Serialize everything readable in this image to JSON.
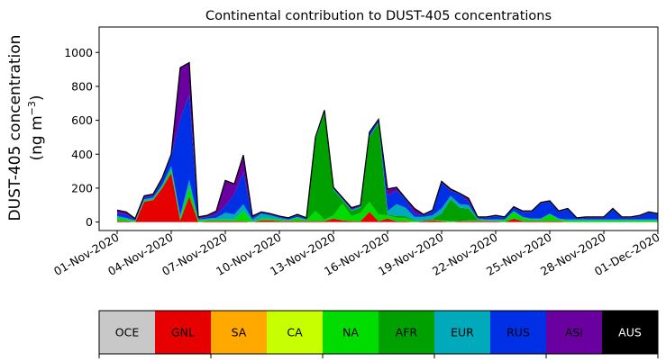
{
  "chart_data": {
    "type": "area",
    "stacked": true,
    "title": "Continental contribution to DUST-405 concentrations",
    "ylabel_line1": "DUST-405 concentration",
    "ylabel_line2": "(ng m",
    "ylabel_sup": "−3",
    "ylabel_close": ")",
    "x_start": "2020-11-01",
    "x_step_days": 0.5,
    "xlim": [
      "2020-10-31",
      "2020-12-01"
    ],
    "ylim": [
      -50,
      1150
    ],
    "yticks": [
      0,
      200,
      400,
      600,
      800,
      1000
    ],
    "xtick_labels": [
      "01-Nov-2020",
      "04-Nov-2020",
      "07-Nov-2020",
      "10-Nov-2020",
      "13-Nov-2020",
      "16-Nov-2020",
      "19-Nov-2020",
      "22-Nov-2020",
      "25-Nov-2020",
      "28-Nov-2020",
      "01-Dec-2020"
    ],
    "grid": false,
    "legend": "colorbar-below",
    "series": [
      {
        "name": "OCE",
        "color": "#c8c8c8",
        "values": [
          0,
          0,
          0,
          0,
          0,
          0,
          0,
          0,
          0,
          0,
          0,
          0,
          0,
          0,
          0,
          0,
          0,
          0,
          0,
          0,
          0,
          0,
          0,
          0,
          0,
          0,
          0,
          0,
          0,
          0,
          0,
          0,
          0,
          0,
          0,
          0,
          0,
          0,
          0,
          0,
          0,
          0,
          0,
          0,
          0,
          0,
          0,
          0,
          0,
          0,
          0,
          0,
          0,
          0,
          0,
          0,
          0,
          0,
          0,
          0,
          0
        ]
      },
      {
        "name": "GNL",
        "color": "#e60000",
        "values": [
          5,
          5,
          0,
          120,
          130,
          200,
          290,
          10,
          150,
          0,
          5,
          5,
          5,
          5,
          5,
          0,
          10,
          10,
          5,
          5,
          5,
          5,
          5,
          5,
          20,
          10,
          5,
          5,
          60,
          5,
          20,
          5,
          5,
          0,
          5,
          10,
          5,
          0,
          5,
          5,
          5,
          5,
          5,
          0,
          20,
          5,
          5,
          5,
          5,
          5,
          0,
          0,
          0,
          0,
          0,
          0,
          0,
          0,
          0,
          0,
          0
        ]
      },
      {
        "name": "SA",
        "color": "#ffa800",
        "values": [
          0,
          0,
          0,
          0,
          0,
          0,
          0,
          0,
          0,
          0,
          0,
          0,
          0,
          0,
          0,
          0,
          0,
          0,
          0,
          0,
          0,
          0,
          0,
          0,
          0,
          0,
          0,
          0,
          0,
          0,
          0,
          0,
          0,
          0,
          0,
          0,
          0,
          0,
          0,
          0,
          0,
          0,
          0,
          0,
          0,
          0,
          0,
          0,
          0,
          0,
          0,
          0,
          0,
          0,
          0,
          0,
          0,
          0,
          0,
          0,
          0
        ]
      },
      {
        "name": "CA",
        "color": "#c8ff00",
        "values": [
          0,
          0,
          0,
          0,
          0,
          0,
          0,
          0,
          0,
          0,
          0,
          0,
          0,
          0,
          0,
          0,
          0,
          0,
          0,
          0,
          0,
          0,
          0,
          0,
          0,
          0,
          0,
          0,
          0,
          0,
          0,
          0,
          0,
          0,
          0,
          0,
          0,
          0,
          0,
          0,
          0,
          0,
          0,
          0,
          0,
          0,
          0,
          0,
          0,
          0,
          0,
          0,
          0,
          0,
          0,
          0,
          0,
          0,
          0,
          0,
          0
        ]
      },
      {
        "name": "NA",
        "color": "#00dc00",
        "values": [
          20,
          10,
          5,
          5,
          5,
          10,
          20,
          10,
          60,
          10,
          10,
          10,
          10,
          10,
          60,
          5,
          10,
          10,
          10,
          5,
          20,
          5,
          60,
          10,
          20,
          100,
          30,
          50,
          60,
          40,
          20,
          20,
          20,
          5,
          0,
          5,
          5,
          5,
          0,
          5,
          5,
          5,
          5,
          10,
          40,
          20,
          10,
          10,
          40,
          10,
          10,
          10,
          10,
          10,
          10,
          10,
          10,
          10,
          10,
          10,
          10
        ]
      },
      {
        "name": "AFR",
        "color": "#00a000",
        "values": [
          0,
          0,
          0,
          0,
          0,
          0,
          0,
          0,
          0,
          0,
          0,
          0,
          0,
          0,
          0,
          0,
          0,
          0,
          0,
          0,
          0,
          0,
          420,
          630,
          150,
          20,
          30,
          30,
          380,
          540,
          5,
          10,
          10,
          5,
          5,
          5,
          40,
          130,
          80,
          70,
          5,
          0,
          0,
          0,
          0,
          0,
          0,
          0,
          0,
          0,
          0,
          0,
          0,
          0,
          0,
          0,
          0,
          0,
          0,
          0,
          0
        ]
      },
      {
        "name": "EUR",
        "color": "#00aabb",
        "values": [
          10,
          10,
          5,
          10,
          10,
          10,
          20,
          20,
          40,
          5,
          5,
          10,
          40,
          30,
          40,
          10,
          30,
          20,
          10,
          5,
          5,
          5,
          5,
          5,
          5,
          5,
          5,
          5,
          5,
          5,
          20,
          70,
          50,
          20,
          20,
          20,
          30,
          20,
          20,
          20,
          5,
          5,
          5,
          5,
          5,
          5,
          5,
          5,
          5,
          5,
          5,
          5,
          5,
          5,
          5,
          5,
          5,
          5,
          5,
          5,
          5
        ]
      },
      {
        "name": "RUS",
        "color": "#0030e6",
        "values": [
          20,
          20,
          5,
          10,
          10,
          30,
          60,
          570,
          500,
          5,
          10,
          20,
          40,
          120,
          190,
          10,
          5,
          5,
          5,
          5,
          10,
          5,
          5,
          5,
          5,
          5,
          5,
          5,
          20,
          10,
          90,
          80,
          50,
          20,
          10,
          20,
          150,
          30,
          60,
          20,
          5,
          10,
          20,
          10,
          20,
          30,
          40,
          90,
          70,
          40,
          60,
          5,
          10,
          10,
          10,
          60,
          10,
          10,
          20,
          40,
          30
        ]
      },
      {
        "name": "ASI",
        "color": "#6a00a0",
        "values": [
          15,
          15,
          5,
          10,
          10,
          10,
          10,
          300,
          190,
          10,
          10,
          20,
          150,
          60,
          100,
          10,
          5,
          5,
          5,
          5,
          5,
          5,
          5,
          5,
          5,
          5,
          10,
          5,
          5,
          5,
          40,
          20,
          5,
          30,
          5,
          10,
          10,
          10,
          5,
          20,
          5,
          5,
          5,
          5,
          5,
          5,
          5,
          5,
          5,
          5,
          5,
          5,
          5,
          5,
          5,
          5,
          5,
          5,
          5,
          5,
          5
        ]
      },
      {
        "name": "AUS",
        "color": "#000000",
        "values": [
          0,
          0,
          0,
          0,
          0,
          0,
          0,
          0,
          0,
          0,
          0,
          0,
          0,
          0,
          0,
          0,
          0,
          0,
          0,
          0,
          0,
          0,
          0,
          0,
          0,
          0,
          0,
          0,
          0,
          0,
          0,
          0,
          0,
          0,
          0,
          0,
          0,
          0,
          0,
          0,
          0,
          0,
          0,
          0,
          0,
          0,
          0,
          0,
          0,
          0,
          0,
          0,
          0,
          0,
          0,
          0,
          0,
          0,
          0,
          0,
          0
        ]
      }
    ]
  }
}
